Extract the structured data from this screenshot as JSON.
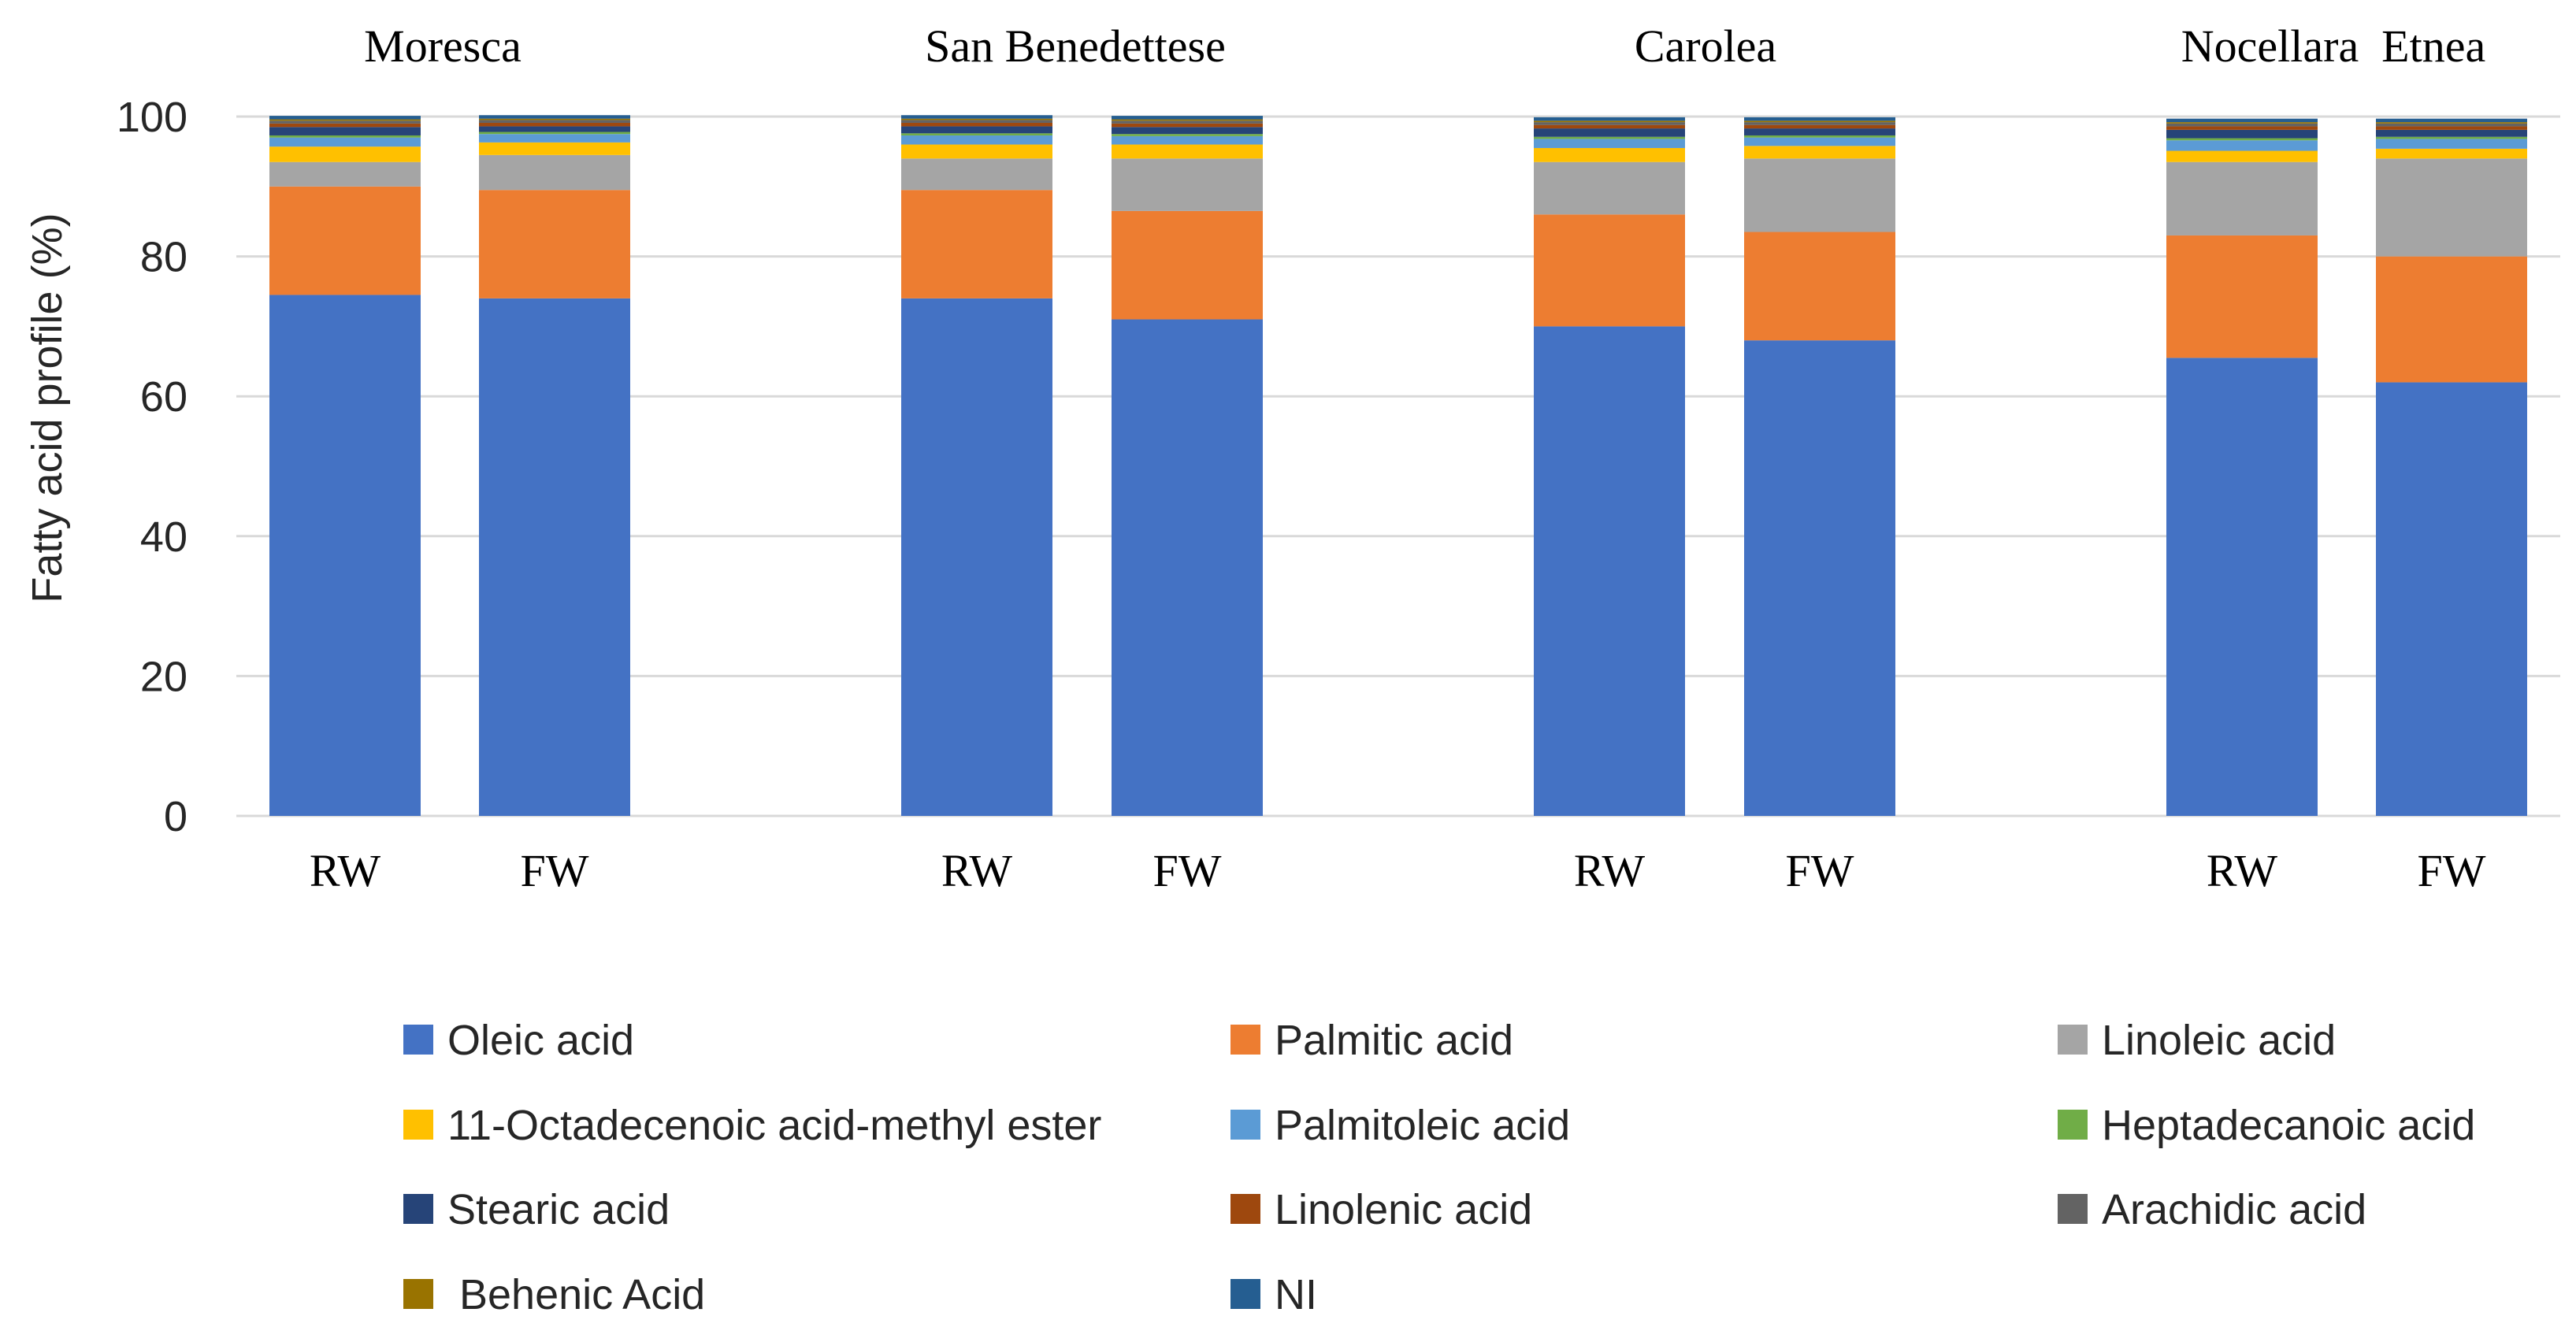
{
  "chart_data": {
    "type": "bar",
    "stacked": true,
    "title": "",
    "ylabel": "Fatty acid profile (%)",
    "xlabel": "",
    "ylim": [
      0,
      100
    ],
    "yticks": [
      0,
      20,
      40,
      60,
      80,
      100
    ],
    "grid": true,
    "groups": [
      "Moresca",
      "San Benedettese",
      "Carolea",
      "Nocellara  Etnea"
    ],
    "categories": [
      "RW",
      "FW",
      "RW",
      "FW",
      "RW",
      "FW",
      "RW",
      "FW"
    ],
    "legend_position": "bottom",
    "series": [
      {
        "name": "Oleic acid",
        "color": "#4472C4",
        "values": [
          74.5,
          74.0,
          74.0,
          71.0,
          70.0,
          68.0,
          65.5,
          62.0
        ]
      },
      {
        "name": "Palmitic acid",
        "color": "#ED7D31",
        "values": [
          15.5,
          15.5,
          15.5,
          15.5,
          16.0,
          15.5,
          17.5,
          18.0
        ]
      },
      {
        "name": "Linoleic acid",
        "color": "#A5A5A5",
        "values": [
          3.5,
          5.0,
          4.5,
          7.5,
          7.5,
          10.5,
          10.5,
          14.0
        ]
      },
      {
        "name": "11-Octadecenoic acid-methyl ester",
        "color": "#FFC000",
        "values": [
          2.2,
          1.8,
          2.0,
          2.0,
          2.0,
          1.8,
          1.6,
          1.4
        ]
      },
      {
        "name": "Palmitoleic acid",
        "color": "#5B9BD5",
        "values": [
          1.3,
          1.2,
          1.3,
          1.2,
          1.3,
          1.2,
          1.5,
          1.4
        ]
      },
      {
        "name": "Heptadecanoic acid",
        "color": "#70AD47",
        "values": [
          0.3,
          0.3,
          0.3,
          0.3,
          0.3,
          0.3,
          0.3,
          0.3
        ]
      },
      {
        "name": "Stearic acid",
        "color": "#264478",
        "values": [
          1.2,
          0.8,
          1.0,
          1.0,
          1.2,
          1.0,
          1.2,
          1.0
        ]
      },
      {
        "name": "Linolenic acid",
        "color": "#9E480E",
        "values": [
          0.5,
          0.5,
          0.5,
          0.5,
          0.5,
          0.5,
          0.5,
          0.5
        ]
      },
      {
        "name": "Arachidic acid",
        "color": "#636363",
        "values": [
          0.4,
          0.4,
          0.4,
          0.4,
          0.4,
          0.4,
          0.4,
          0.4
        ]
      },
      {
        "name": " Behenic Acid",
        "color": "#997300",
        "values": [
          0.2,
          0.2,
          0.2,
          0.2,
          0.2,
          0.2,
          0.2,
          0.2
        ]
      },
      {
        "name": "NI",
        "color": "#255E91",
        "values": [
          0.5,
          0.5,
          0.5,
          0.5,
          0.5,
          0.5,
          0.5,
          0.5
        ]
      }
    ]
  }
}
